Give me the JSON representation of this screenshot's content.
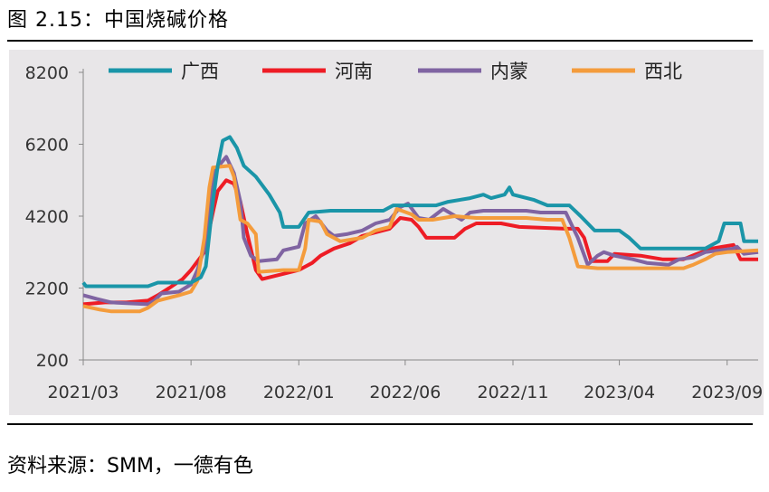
{
  "figure_title": "图 2.15：中国烧碱价格",
  "source": "资料来源：SMM，一德有色",
  "chart_data": {
    "type": "line",
    "title": "",
    "xlabel": "",
    "ylabel": "",
    "ylim": [
      200,
      8200
    ],
    "yticks": [
      "200",
      "2200",
      "4200",
      "6200",
      "8200"
    ],
    "xticks": [
      {
        "label": "2021/03",
        "x": "2021-03-01"
      },
      {
        "label": "2021/08",
        "x": "2021-08-01"
      },
      {
        "label": "2022/01",
        "x": "2022-01-01"
      },
      {
        "label": "2022/06",
        "x": "2022-06-01"
      },
      {
        "label": "2022/11",
        "x": "2022-11-01"
      },
      {
        "label": "2023/04",
        "x": "2023-04-01"
      },
      {
        "label": "2023/09",
        "x": "2023-09-01"
      }
    ],
    "x_range": [
      "2021-03-01",
      "2023-10-15"
    ],
    "legend_position": "top",
    "grid": false,
    "series": [
      {
        "name": "广西",
        "color": "#1a95a8",
        "points": [
          [
            "2021-03-01",
            2350
          ],
          [
            "2021-03-05",
            2250
          ],
          [
            "2021-04-01",
            2250
          ],
          [
            "2021-05-01",
            2250
          ],
          [
            "2021-06-01",
            2250
          ],
          [
            "2021-06-15",
            2350
          ],
          [
            "2021-07-15",
            2350
          ],
          [
            "2021-08-01",
            2350
          ],
          [
            "2021-08-15",
            2500
          ],
          [
            "2021-08-22",
            2800
          ],
          [
            "2021-09-01",
            4600
          ],
          [
            "2021-09-08",
            5600
          ],
          [
            "2021-09-15",
            6300
          ],
          [
            "2021-09-25",
            6400
          ],
          [
            "2021-10-05",
            6100
          ],
          [
            "2021-10-15",
            5600
          ],
          [
            "2021-11-01",
            5300
          ],
          [
            "2021-11-20",
            4800
          ],
          [
            "2021-12-05",
            4300
          ],
          [
            "2021-12-10",
            3900
          ],
          [
            "2022-01-01",
            3900
          ],
          [
            "2022-01-15",
            4300
          ],
          [
            "2022-02-15",
            4350
          ],
          [
            "2022-05-01",
            4350
          ],
          [
            "2022-05-15",
            4500
          ],
          [
            "2022-07-15",
            4500
          ],
          [
            "2022-08-01",
            4600
          ],
          [
            "2022-09-01",
            4700
          ],
          [
            "2022-09-20",
            4800
          ],
          [
            "2022-10-01",
            4700
          ],
          [
            "2022-10-20",
            4800
          ],
          [
            "2022-10-27",
            5000
          ],
          [
            "2022-11-01",
            4800
          ],
          [
            "2022-12-01",
            4650
          ],
          [
            "2022-12-20",
            4500
          ],
          [
            "2023-01-20",
            4500
          ],
          [
            "2023-02-05",
            4200
          ],
          [
            "2023-02-25",
            3800
          ],
          [
            "2023-04-01",
            3800
          ],
          [
            "2023-04-15",
            3600
          ],
          [
            "2023-05-01",
            3300
          ],
          [
            "2023-06-15",
            3300
          ],
          [
            "2023-08-01",
            3300
          ],
          [
            "2023-08-20",
            3500
          ],
          [
            "2023-08-28",
            4000
          ],
          [
            "2023-09-20",
            4000
          ],
          [
            "2023-09-25",
            3500
          ],
          [
            "2023-10-15",
            3500
          ]
        ]
      },
      {
        "name": "河南",
        "color": "#ee1c25",
        "points": [
          [
            "2021-03-01",
            1750
          ],
          [
            "2021-04-01",
            1800
          ],
          [
            "2021-05-01",
            1800
          ],
          [
            "2021-06-01",
            1850
          ],
          [
            "2021-06-15",
            2000
          ],
          [
            "2021-07-01",
            2200
          ],
          [
            "2021-07-20",
            2450
          ],
          [
            "2021-08-01",
            2700
          ],
          [
            "2021-08-20",
            3200
          ],
          [
            "2021-09-01",
            4300
          ],
          [
            "2021-09-08",
            4900
          ],
          [
            "2021-09-20",
            5200
          ],
          [
            "2021-10-01",
            5100
          ],
          [
            "2021-10-10",
            4600
          ],
          [
            "2021-10-20",
            3700
          ],
          [
            "2021-11-01",
            2700
          ],
          [
            "2021-11-10",
            2450
          ],
          [
            "2021-12-01",
            2550
          ],
          [
            "2022-01-01",
            2700
          ],
          [
            "2022-01-20",
            2900
          ],
          [
            "2022-02-01",
            3100
          ],
          [
            "2022-02-20",
            3300
          ],
          [
            "2022-03-15",
            3450
          ],
          [
            "2022-04-01",
            3650
          ],
          [
            "2022-04-20",
            3750
          ],
          [
            "2022-05-10",
            3850
          ],
          [
            "2022-05-25",
            4150
          ],
          [
            "2022-06-10",
            4100
          ],
          [
            "2022-06-20",
            3900
          ],
          [
            "2022-07-01",
            3600
          ],
          [
            "2022-08-10",
            3600
          ],
          [
            "2022-08-25",
            3850
          ],
          [
            "2022-09-10",
            4000
          ],
          [
            "2022-10-15",
            4000
          ],
          [
            "2022-11-10",
            3900
          ],
          [
            "2023-01-15",
            3850
          ],
          [
            "2023-02-01",
            3850
          ],
          [
            "2023-02-10",
            3600
          ],
          [
            "2023-02-20",
            2950
          ],
          [
            "2023-03-15",
            2950
          ],
          [
            "2023-03-25",
            3150
          ],
          [
            "2023-05-01",
            3100
          ],
          [
            "2023-06-01",
            3000
          ],
          [
            "2023-07-01",
            3000
          ],
          [
            "2023-07-20",
            3150
          ],
          [
            "2023-08-10",
            3300
          ],
          [
            "2023-08-25",
            3350
          ],
          [
            "2023-09-10",
            3400
          ],
          [
            "2023-09-20",
            3000
          ],
          [
            "2023-10-15",
            3000
          ]
        ]
      },
      {
        "name": "内蒙",
        "color": "#8064a2",
        "points": [
          [
            "2021-03-01",
            2000
          ],
          [
            "2021-03-20",
            1900
          ],
          [
            "2021-04-10",
            1800
          ],
          [
            "2021-06-01",
            1750
          ],
          [
            "2021-06-10",
            1850
          ],
          [
            "2021-06-20",
            2050
          ],
          [
            "2021-07-15",
            2100
          ],
          [
            "2021-08-01",
            2300
          ],
          [
            "2021-08-10",
            2700
          ],
          [
            "2021-08-20",
            3300
          ],
          [
            "2021-08-28",
            4500
          ],
          [
            "2021-09-05",
            5500
          ],
          [
            "2021-09-20",
            5850
          ],
          [
            "2021-10-01",
            5400
          ],
          [
            "2021-10-10",
            4600
          ],
          [
            "2021-10-15",
            3600
          ],
          [
            "2021-10-25",
            3100
          ],
          [
            "2021-11-05",
            2950
          ],
          [
            "2021-12-01",
            3000
          ],
          [
            "2021-12-10",
            3250
          ],
          [
            "2022-01-01",
            3350
          ],
          [
            "2022-01-10",
            4000
          ],
          [
            "2022-01-25",
            4200
          ],
          [
            "2022-02-10",
            3800
          ],
          [
            "2022-02-20",
            3650
          ],
          [
            "2022-03-10",
            3700
          ],
          [
            "2022-04-01",
            3800
          ],
          [
            "2022-04-20",
            4000
          ],
          [
            "2022-05-10",
            4100
          ],
          [
            "2022-05-25",
            4450
          ],
          [
            "2022-06-05",
            4550
          ],
          [
            "2022-06-20",
            4150
          ],
          [
            "2022-07-05",
            4100
          ],
          [
            "2022-07-25",
            4400
          ],
          [
            "2022-08-20",
            4100
          ],
          [
            "2022-09-01",
            4300
          ],
          [
            "2022-09-20",
            4350
          ],
          [
            "2022-11-20",
            4350
          ],
          [
            "2022-12-10",
            4300
          ],
          [
            "2023-01-15",
            4300
          ],
          [
            "2023-02-01",
            3600
          ],
          [
            "2023-02-15",
            2850
          ],
          [
            "2023-03-01",
            3100
          ],
          [
            "2023-03-10",
            3200
          ],
          [
            "2023-03-25",
            3100
          ],
          [
            "2023-04-20",
            3000
          ],
          [
            "2023-05-10",
            2900
          ],
          [
            "2023-06-10",
            2850
          ],
          [
            "2023-06-25",
            3000
          ],
          [
            "2023-07-15",
            3050
          ],
          [
            "2023-08-01",
            3200
          ],
          [
            "2023-09-10",
            3300
          ],
          [
            "2023-09-15",
            3350
          ],
          [
            "2023-09-25",
            3150
          ],
          [
            "2023-10-15",
            3200
          ]
        ]
      },
      {
        "name": "西北",
        "color": "#f49c3c",
        "points": [
          [
            "2021-03-01",
            1700
          ],
          [
            "2021-03-25",
            1600
          ],
          [
            "2021-04-10",
            1550
          ],
          [
            "2021-05-20",
            1550
          ],
          [
            "2021-06-01",
            1650
          ],
          [
            "2021-06-15",
            1850
          ],
          [
            "2021-07-15",
            2000
          ],
          [
            "2021-08-01",
            2100
          ],
          [
            "2021-08-10",
            2400
          ],
          [
            "2021-08-20",
            3600
          ],
          [
            "2021-08-27",
            5000
          ],
          [
            "2021-09-01",
            5550
          ],
          [
            "2021-09-25",
            5600
          ],
          [
            "2021-10-01",
            5300
          ],
          [
            "2021-10-10",
            4100
          ],
          [
            "2021-10-20",
            4000
          ],
          [
            "2021-11-01",
            3700
          ],
          [
            "2021-11-05",
            2650
          ],
          [
            "2021-12-10",
            2700
          ],
          [
            "2022-01-01",
            2700
          ],
          [
            "2022-01-10",
            3300
          ],
          [
            "2022-01-15",
            4100
          ],
          [
            "2022-02-01",
            4050
          ],
          [
            "2022-02-10",
            3700
          ],
          [
            "2022-03-01",
            3500
          ],
          [
            "2022-04-01",
            3600
          ],
          [
            "2022-04-20",
            3800
          ],
          [
            "2022-05-10",
            3900
          ],
          [
            "2022-05-20",
            4400
          ],
          [
            "2022-06-10",
            4250
          ],
          [
            "2022-06-20",
            4100
          ],
          [
            "2022-07-10",
            4100
          ],
          [
            "2022-08-10",
            4200
          ],
          [
            "2022-09-10",
            4150
          ],
          [
            "2022-11-20",
            4150
          ],
          [
            "2022-12-20",
            4100
          ],
          [
            "2023-01-10",
            4100
          ],
          [
            "2023-01-20",
            3600
          ],
          [
            "2023-02-01",
            2800
          ],
          [
            "2023-03-01",
            2750
          ],
          [
            "2023-05-01",
            2750
          ],
          [
            "2023-07-01",
            2750
          ],
          [
            "2023-07-15",
            2850
          ],
          [
            "2023-08-01",
            3000
          ],
          [
            "2023-08-15",
            3150
          ],
          [
            "2023-09-01",
            3200
          ],
          [
            "2023-10-15",
            3250
          ]
        ]
      }
    ]
  }
}
